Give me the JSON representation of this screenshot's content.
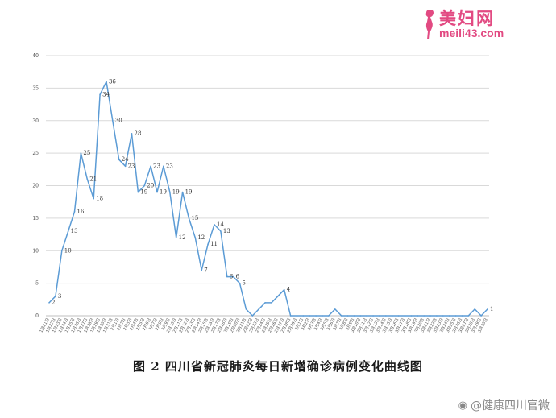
{
  "watermark": {
    "site": "美妇网",
    "url": "meili43.com"
  },
  "caption": "图 2  四川省新冠肺炎每日新增确诊病例变化曲线图",
  "credit": {
    "text": "@健康四川官微"
  },
  "chart_data": {
    "type": "line",
    "title": "",
    "xlabel": "",
    "ylabel": "",
    "ylim": [
      0,
      40
    ],
    "yticks": [
      0,
      5,
      10,
      15,
      20,
      25,
      30,
      35,
      40
    ],
    "grid": true,
    "line_color": "#5b9bd5",
    "x": [
      "1月21日",
      "1月22日",
      "1月23日",
      "1月24日",
      "1月25日",
      "1月26日",
      "1月27日",
      "1月28日",
      "1月29日",
      "1月30日",
      "1月31日",
      "2月1日",
      "2月2日",
      "2月3日",
      "2月4日",
      "2月5日",
      "2月6日",
      "2月7日",
      "2月8日",
      "2月9日",
      "2月10日",
      "2月11日",
      "2月12日",
      "2月13日",
      "2月14日",
      "2月15日",
      "2月16日",
      "2月17日",
      "2月18日",
      "2月19日",
      "2月20日",
      "2月21日",
      "2月22日",
      "2月23日",
      "2月24日",
      "2月25日",
      "2月26日",
      "2月27日",
      "2月28日",
      "2月29日",
      "3月1日",
      "3月2日",
      "3月3日",
      "3月4日",
      "3月5日",
      "3月6日",
      "3月7日",
      "3月8日",
      "3月9日",
      "3月10日",
      "3月11日",
      "3月12日",
      "3月13日",
      "3月14日",
      "3月15日",
      "3月16日",
      "3月17日",
      "3月18日",
      "3月19日",
      "3月20日",
      "3月21日",
      "3月22日",
      "3月23日",
      "3月24日",
      "3月25日",
      "3月26日",
      "3月27日",
      "3月28日",
      "3月29日",
      "3月30日"
    ],
    "values": [
      2,
      3,
      10,
      13,
      16,
      25,
      21,
      18,
      34,
      36,
      30,
      24,
      23,
      28,
      19,
      20,
      23,
      19,
      23,
      19,
      12,
      19,
      15,
      12,
      7,
      11,
      14,
      13,
      6,
      6,
      5,
      1,
      0,
      1,
      2,
      2,
      3,
      4,
      0,
      0,
      0,
      0,
      0,
      0,
      0,
      1,
      0,
      0,
      0,
      0,
      0,
      0,
      0,
      0,
      0,
      0,
      0,
      0,
      0,
      0,
      0,
      0,
      0,
      0,
      0,
      0,
      0,
      1,
      0,
      1
    ],
    "point_labels": [
      2,
      3,
      10,
      13,
      16,
      25,
      21,
      18,
      34,
      36,
      30,
      24,
      23,
      28,
      19,
      20,
      23,
      19,
      23,
      19,
      12,
      19,
      15,
      12,
      7,
      11,
      14,
      13,
      6,
      6,
      5,
      null,
      null,
      null,
      null,
      null,
      null,
      4,
      null,
      null,
      null,
      null,
      null,
      null,
      null,
      null,
      null,
      null,
      null,
      null,
      null,
      null,
      null,
      null,
      null,
      null,
      null,
      null,
      null,
      null,
      null,
      null,
      null,
      null,
      null,
      null,
      null,
      null,
      null,
      1
    ]
  }
}
